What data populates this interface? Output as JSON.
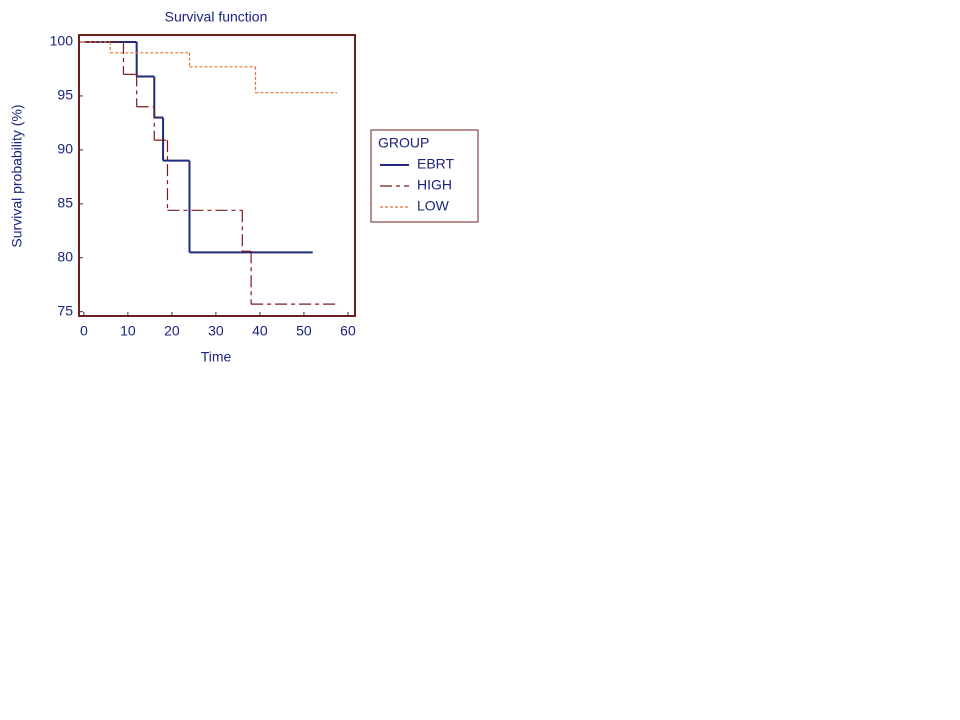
{
  "chart_data": {
    "type": "step",
    "title": "Survival function",
    "x_label": "Time",
    "y_label": "Survival probability (%)",
    "xlim": [
      -1.1,
      61.6
    ],
    "ylim": [
      74.6,
      100.65
    ],
    "xticks": [
      0,
      10,
      20,
      30,
      40,
      50,
      60
    ],
    "yticks": [
      75,
      80,
      85,
      90,
      95,
      100
    ],
    "legend_title": "GROUP",
    "legend_position": "right",
    "frame_color": "#6b1f1f",
    "series": [
      {
        "name": "EBRT",
        "color": "#1f2a7a",
        "dash": "solid",
        "x": [
          0,
          12,
          16,
          18,
          24,
          52
        ],
        "values": [
          100,
          96.8,
          93,
          89,
          80.5,
          80.5
        ]
      },
      {
        "name": "HIGH",
        "color": "#7a1a1a",
        "dash": "dashed",
        "x": [
          0,
          9,
          12,
          16,
          19,
          36,
          38,
          58
        ],
        "values": [
          100,
          97,
          94,
          90.9,
          84.4,
          80.6,
          75.7,
          75.7
        ]
      },
      {
        "name": "LOW",
        "color": "#e07030",
        "dash": "dotted",
        "x": [
          0,
          6,
          24,
          39,
          57.5
        ],
        "values": [
          100,
          99,
          97.7,
          95.3,
          95.3
        ]
      }
    ]
  }
}
